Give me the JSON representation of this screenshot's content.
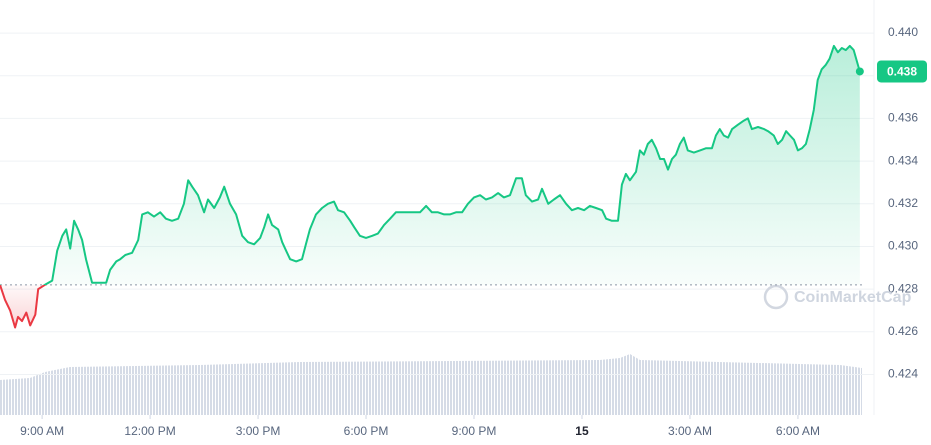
{
  "chart_data": {
    "type": "line",
    "x": [
      7.83,
      7.97,
      8.11,
      8.25,
      8.33,
      8.44,
      8.56,
      8.67,
      8.81,
      8.89,
      9.08,
      9.28,
      9.42,
      9.56,
      9.67,
      9.78,
      9.89,
      10.0,
      10.11,
      10.22,
      10.39,
      10.61,
      10.78,
      10.89,
      11.06,
      11.17,
      11.31,
      11.5,
      11.67,
      11.78,
      11.94,
      12.11,
      12.28,
      12.44,
      12.61,
      12.78,
      12.94,
      13.06,
      13.17,
      13.33,
      13.5,
      13.61,
      13.78,
      13.94,
      14.06,
      14.22,
      14.39,
      14.56,
      14.72,
      14.89,
      15.06,
      15.17,
      15.28,
      15.39,
      15.56,
      15.67,
      15.78,
      15.89,
      16.06,
      16.22,
      16.33,
      16.44,
      16.61,
      16.78,
      16.94,
      17.11,
      17.22,
      17.39,
      17.56,
      17.67,
      17.83,
      18.0,
      18.17,
      18.33,
      18.5,
      18.67,
      18.83,
      19.0,
      19.17,
      19.33,
      19.5,
      19.67,
      19.83,
      20.0,
      20.17,
      20.33,
      20.5,
      20.67,
      20.83,
      21.0,
      21.17,
      21.33,
      21.5,
      21.67,
      21.83,
      22.0,
      22.17,
      22.33,
      22.44,
      22.61,
      22.78,
      22.89,
      23.06,
      23.22,
      23.39,
      23.56,
      23.72,
      23.89,
      24.06,
      24.22,
      24.39,
      24.56,
      24.67,
      24.83,
      25.0,
      25.11,
      25.22,
      25.33,
      25.5,
      25.61,
      25.72,
      25.83,
      25.94,
      26.06,
      26.17,
      26.28,
      26.39,
      26.5,
      26.61,
      26.72,
      26.83,
      26.94,
      27.11,
      27.28,
      27.44,
      27.61,
      27.72,
      27.83,
      27.94,
      28.06,
      28.17,
      28.33,
      28.5,
      28.61,
      28.72,
      28.89,
      29.06,
      29.17,
      29.33,
      29.44,
      29.56,
      29.67,
      29.78,
      29.89,
      30.0,
      30.11,
      30.22,
      30.33,
      30.44,
      30.55,
      30.66,
      30.77,
      30.88,
      31.0,
      31.11,
      31.22,
      31.33,
      31.44,
      31.55,
      31.72
    ],
    "values": [
      0.4282,
      0.4275,
      0.427,
      0.4262,
      0.4267,
      0.4265,
      0.4269,
      0.4263,
      0.4268,
      0.428,
      0.4282,
      0.4284,
      0.4298,
      0.4305,
      0.4308,
      0.4299,
      0.4312,
      0.4308,
      0.4303,
      0.4294,
      0.4283,
      0.4283,
      0.4283,
      0.4289,
      0.4293,
      0.4294,
      0.4296,
      0.4297,
      0.4303,
      0.4315,
      0.4316,
      0.4314,
      0.4316,
      0.4313,
      0.4312,
      0.4313,
      0.432,
      0.4331,
      0.4328,
      0.4324,
      0.4316,
      0.4322,
      0.4318,
      0.4323,
      0.4328,
      0.432,
      0.4315,
      0.4305,
      0.4302,
      0.4301,
      0.4304,
      0.4309,
      0.4315,
      0.431,
      0.4308,
      0.4302,
      0.4298,
      0.4294,
      0.4293,
      0.4294,
      0.4301,
      0.4308,
      0.4315,
      0.4318,
      0.432,
      0.4321,
      0.4317,
      0.4316,
      0.4312,
      0.4309,
      0.4305,
      0.4304,
      0.4305,
      0.4306,
      0.431,
      0.4313,
      0.4316,
      0.4316,
      0.4316,
      0.4316,
      0.4316,
      0.4319,
      0.4316,
      0.4316,
      0.4315,
      0.4315,
      0.4316,
      0.4316,
      0.432,
      0.4323,
      0.4324,
      0.4322,
      0.4323,
      0.4325,
      0.4323,
      0.4324,
      0.4332,
      0.4332,
      0.4324,
      0.4321,
      0.4322,
      0.4327,
      0.432,
      0.4322,
      0.4324,
      0.432,
      0.4317,
      0.4318,
      0.4317,
      0.4319,
      0.4318,
      0.4317,
      0.4313,
      0.4312,
      0.4312,
      0.4329,
      0.4334,
      0.4331,
      0.4335,
      0.4345,
      0.4343,
      0.4348,
      0.435,
      0.4346,
      0.4341,
      0.4341,
      0.4336,
      0.4341,
      0.4343,
      0.4348,
      0.4351,
      0.4345,
      0.4344,
      0.4345,
      0.4346,
      0.4346,
      0.4352,
      0.4355,
      0.4352,
      0.4351,
      0.4355,
      0.4357,
      0.4359,
      0.436,
      0.4355,
      0.4356,
      0.4355,
      0.4354,
      0.4352,
      0.4348,
      0.435,
      0.4354,
      0.4352,
      0.435,
      0.4345,
      0.4346,
      0.4348,
      0.4355,
      0.4364,
      0.4378,
      0.4383,
      0.4385,
      0.4388,
      0.4394,
      0.4391,
      0.4393,
      0.4392,
      0.4394,
      0.4392,
      0.4382
    ],
    "color_up": "#16c784",
    "color_down": "#ea3943",
    "baseline": 0.4282,
    "current_price": {
      "value": 0.4382,
      "label": "0.438"
    },
    "watermark": "CoinMarketCap",
    "xlim": [
      7.83,
      31.78
    ],
    "xticks": [
      {
        "value": 9,
        "label": "9:00 AM"
      },
      {
        "value": 12,
        "label": "12:00 PM"
      },
      {
        "value": 15,
        "label": "3:00 PM"
      },
      {
        "value": 18,
        "label": "6:00 PM"
      },
      {
        "value": 21,
        "label": "9:00 PM"
      },
      {
        "value": 24,
        "label": "15"
      },
      {
        "value": 27,
        "label": "3:00 AM"
      },
      {
        "value": 30,
        "label": "6:00 AM"
      }
    ],
    "ylim": [
      0.4221,
      0.44155
    ],
    "yticks": [
      0.424,
      0.426,
      0.428,
      {
        "value": 0.43,
        "label": "0.430"
      },
      0.432,
      0.434,
      0.436,
      0.438,
      {
        "value": 0.44,
        "label": "0.440"
      }
    ],
    "grid": true
  }
}
